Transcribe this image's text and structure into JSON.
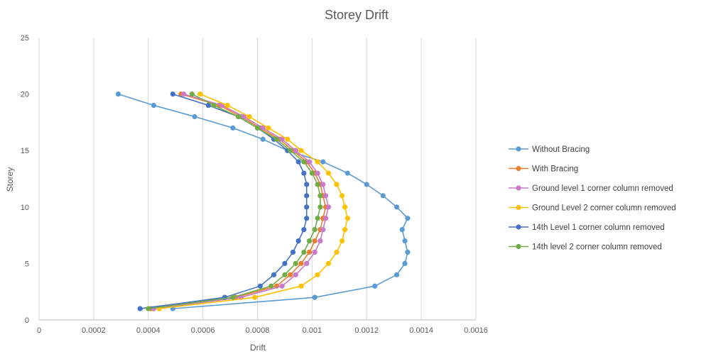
{
  "chart_data": {
    "type": "line",
    "title": "Storey Drift",
    "xlabel": "Drift",
    "ylabel": "Storey",
    "xlim": [
      0,
      0.0016
    ],
    "ylim": [
      0,
      25
    ],
    "x_ticks": [
      "0",
      "0.0002",
      "0.0004",
      "0.0006",
      "0.0008",
      "0.001",
      "0.0012",
      "0.0014",
      "0.0016"
    ],
    "y_ticks": [
      "0",
      "5",
      "10",
      "15",
      "20",
      "25"
    ],
    "grid": "vertical",
    "legend_position": "right",
    "storeys": [
      1,
      2,
      3,
      4,
      5,
      6,
      7,
      8,
      9,
      10,
      11,
      12,
      13,
      14,
      15,
      16,
      17,
      18,
      19,
      20
    ],
    "series": [
      {
        "name": "Without Bracing",
        "color": "#5B9BD5",
        "drift": [
          0.00049,
          0.00101,
          0.00123,
          0.00131,
          0.00134,
          0.00135,
          0.00134,
          0.00133,
          0.00135,
          0.00131,
          0.00126,
          0.0012,
          0.00113,
          0.00104,
          0.00091,
          0.00082,
          0.00071,
          0.00057,
          0.00042,
          0.00029
        ]
      },
      {
        "name": "With Bracing",
        "color": "#ED7D31",
        "drift": [
          0.00041,
          0.00072,
          0.00087,
          0.00092,
          0.00096,
          0.00099,
          0.00101,
          0.00103,
          0.00104,
          0.00105,
          0.00104,
          0.00103,
          0.00101,
          0.00098,
          0.00093,
          0.00088,
          0.00081,
          0.00074,
          0.00066,
          0.00052
        ]
      },
      {
        "name": "Ground level 1 corner column removed",
        "color": "#C879C8",
        "drift": [
          0.00042,
          0.00074,
          0.00089,
          0.00094,
          0.00098,
          0.00101,
          0.00103,
          0.00104,
          0.00105,
          0.00106,
          0.00105,
          0.00104,
          0.00102,
          0.00099,
          0.00094,
          0.00089,
          0.00082,
          0.00075,
          0.00067,
          0.00053
        ]
      },
      {
        "name": "Ground Level 2 corner column removed",
        "color": "#FFC000",
        "drift": [
          0.00044,
          0.00079,
          0.00096,
          0.00102,
          0.00106,
          0.00109,
          0.00111,
          0.00112,
          0.00113,
          0.00112,
          0.00111,
          0.00109,
          0.00106,
          0.00102,
          0.00096,
          0.00091,
          0.00084,
          0.00077,
          0.00069,
          0.00059
        ]
      },
      {
        "name": "14th Level 1 corner column removed",
        "color": "#4472C4",
        "drift": [
          0.00037,
          0.00068,
          0.00081,
          0.00086,
          0.0009,
          0.00093,
          0.00095,
          0.00097,
          0.00098,
          0.00098,
          0.00098,
          0.00098,
          0.00097,
          0.00095,
          0.00091,
          0.00086,
          0.0008,
          0.00073,
          0.00062,
          0.00049
        ]
      },
      {
        "name": "14th level 2 corner column removed",
        "color": "#70AD47",
        "drift": [
          0.0004,
          0.00071,
          0.00085,
          0.0009,
          0.00094,
          0.00097,
          0.00099,
          0.00101,
          0.00102,
          0.00103,
          0.00103,
          0.00102,
          0.001,
          0.00097,
          0.00092,
          0.00087,
          0.0008,
          0.00073,
          0.00064,
          0.00056
        ]
      }
    ]
  }
}
